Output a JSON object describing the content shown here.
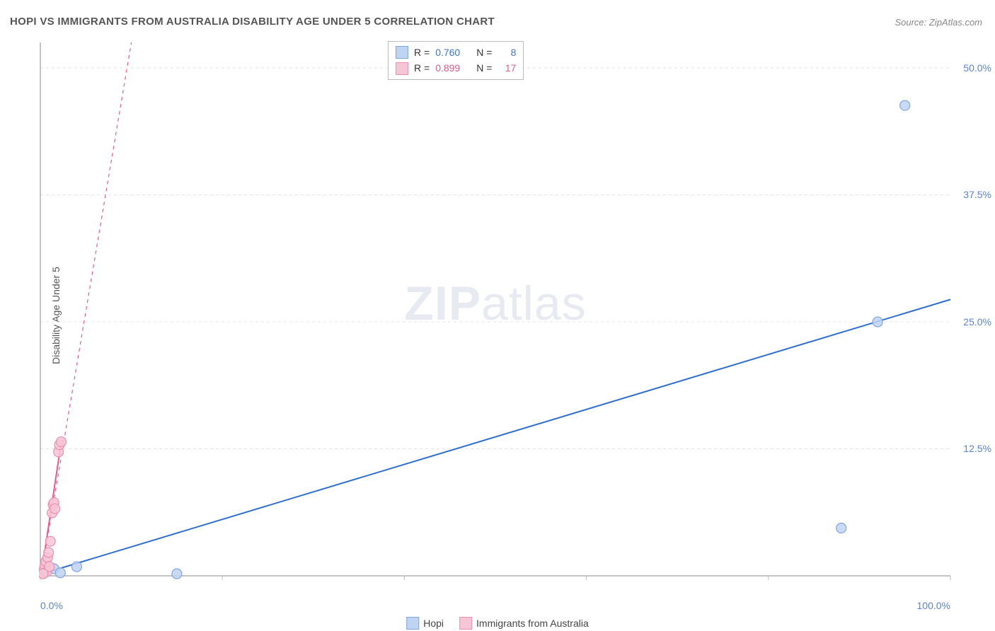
{
  "title": "HOPI VS IMMIGRANTS FROM AUSTRALIA DISABILITY AGE UNDER 5 CORRELATION CHART",
  "source": "Source: ZipAtlas.com",
  "ylabel": "Disability Age Under 5",
  "watermark_bold": "ZIP",
  "watermark_rest": "atlas",
  "chart": {
    "type": "scatter",
    "background_color": "#ffffff",
    "grid_color": "#e4e4e4",
    "axis_color": "#888888",
    "tick_color": "#bfbfbf",
    "xlim": [
      0,
      100
    ],
    "ylim": [
      0,
      52.5
    ],
    "xtick_positions": [
      0,
      20,
      40,
      60,
      80,
      100
    ],
    "xtick_labels_shown": {
      "0": "0.0%",
      "100": "100.0%"
    },
    "ytick_positions": [
      12.5,
      25.0,
      37.5,
      50.0
    ],
    "ytick_labels": [
      "12.5%",
      "25.0%",
      "37.5%",
      "50.0%"
    ],
    "ytick_dashed": [
      12.5,
      25.0,
      37.5,
      50.0
    ],
    "marker_radius": 7,
    "marker_stroke_width": 1.2,
    "series": [
      {
        "name": "Hopi",
        "R": "0.760",
        "N": "8",
        "fill": "#bfd4f2",
        "stroke": "#7ea6e0",
        "trend_color": "#2f6fd0",
        "trend_dashed": false,
        "trend_width": 2,
        "trend": {
          "x1": 0.2,
          "y1": 0.2,
          "x2": 100,
          "y2": 27.2
        },
        "points": [
          {
            "x": 0.5,
            "y": 0.4
          },
          {
            "x": 1.5,
            "y": 0.7
          },
          {
            "x": 2.2,
            "y": 0.3
          },
          {
            "x": 4.0,
            "y": 0.9
          },
          {
            "x": 15.0,
            "y": 0.2
          },
          {
            "x": 88.0,
            "y": 4.7
          },
          {
            "x": 92.0,
            "y": 25.0
          },
          {
            "x": 95.0,
            "y": 46.3
          }
        ]
      },
      {
        "name": "Immigrants from Australia",
        "R": "0.899",
        "N": "17",
        "fill": "#f7c6d6",
        "stroke": "#ea8fb0",
        "trend_color": "#ea5a8e",
        "trend_dashed": true,
        "trend_width": 1.2,
        "trend": {
          "x1": 0.1,
          "y1": 0.1,
          "x2": 10.0,
          "y2": 52.5
        },
        "points": [
          {
            "x": 0.2,
            "y": 0.3
          },
          {
            "x": 0.4,
            "y": 0.6
          },
          {
            "x": 0.5,
            "y": 1.0
          },
          {
            "x": 0.6,
            "y": 1.4
          },
          {
            "x": 0.7,
            "y": 0.4
          },
          {
            "x": 0.8,
            "y": 1.8
          },
          {
            "x": 0.9,
            "y": 2.3
          },
          {
            "x": 1.0,
            "y": 0.9
          },
          {
            "x": 1.1,
            "y": 3.4
          },
          {
            "x": 1.3,
            "y": 6.2
          },
          {
            "x": 1.4,
            "y": 7.0
          },
          {
            "x": 1.5,
            "y": 7.2
          },
          {
            "x": 1.6,
            "y": 6.6
          },
          {
            "x": 2.0,
            "y": 12.2
          },
          {
            "x": 2.1,
            "y": 12.9
          },
          {
            "x": 2.3,
            "y": 13.2
          },
          {
            "x": 0.3,
            "y": 0.2
          }
        ]
      }
    ]
  },
  "legend_top": {
    "r_label": "R =",
    "n_label": "N ="
  },
  "legend_bottom": [
    {
      "swatch_fill": "#bfd4f2",
      "swatch_stroke": "#7ea6e0",
      "label": "Hopi"
    },
    {
      "swatch_fill": "#f7c6d6",
      "swatch_stroke": "#ea8fb0",
      "label": "Immigrants from Australia"
    }
  ],
  "colors": {
    "title": "#555555",
    "source": "#888888",
    "tick_label": "#5b84d6"
  }
}
